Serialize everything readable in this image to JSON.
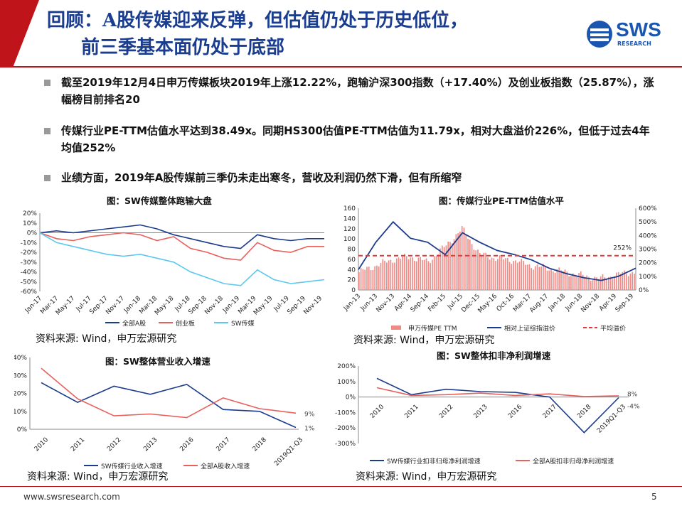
{
  "title": {
    "line1": "回顾：A股传媒迎来反弹，但估值仍处于历史低位，",
    "line2": "前三季基本面仍处于底部"
  },
  "logo": {
    "name": "SWS",
    "sub": "RESEARCH",
    "color": "#1a56b0"
  },
  "bullets": [
    "截至2019年12月4日申万传媒板块2019年上涨12.22%，跑输沪深300指数（+17.40%）及创业板指数（25.87%），涨幅榜目前排名20",
    "传媒行业PE-TTM估值水平达到38.49x。同期HS300估值PE-TTM估值为11.79x，相对大盘溢价226%，但低于过去4年均值252%",
    "业绩方面，2019年A股传媒前三季仍未走出寒冬，营收及利润仍然下滑，但有所缩窄"
  ],
  "colors": {
    "navy": "#1b3b8c",
    "red": "#e8605c",
    "cyan": "#5bc8ef",
    "bar": "#f08a86",
    "dashed": "#e23a3a"
  },
  "chart_data": [
    {
      "type": "line",
      "title": "图：SW传媒整体跑输大盘",
      "x": [
        "Jan-17",
        "Mar-17",
        "May-17",
        "Jul-17",
        "Sep-17",
        "Nov-17",
        "Jan-18",
        "Mar-18",
        "May-18",
        "Jul-18",
        "Sep-18",
        "Nov-18",
        "Jan-19",
        "Mar-19",
        "May-19",
        "Jul-19",
        "Sep-19",
        "Nov-19"
      ],
      "ylim": [
        -60,
        20
      ],
      "yticks": [
        "20%",
        "10%",
        "0%",
        "-10%",
        "-20%",
        "-30%",
        "-40%",
        "-50%",
        "-60%"
      ],
      "series": [
        {
          "name": "全部A股",
          "values": [
            0,
            2,
            0,
            2,
            4,
            6,
            8,
            4,
            -2,
            -6,
            -10,
            -14,
            -16,
            -2,
            -6,
            -8,
            -6,
            -6
          ]
        },
        {
          "name": "创业板",
          "values": [
            0,
            -6,
            -8,
            -4,
            -2,
            0,
            -2,
            -8,
            -4,
            -16,
            -20,
            -26,
            -28,
            -10,
            -18,
            -20,
            -14,
            -14
          ]
        },
        {
          "name": "SW传媒",
          "values": [
            0,
            -10,
            -14,
            -18,
            -22,
            -24,
            -22,
            -26,
            -30,
            -40,
            -46,
            -52,
            -54,
            -38,
            -48,
            -52,
            -50,
            -48
          ]
        }
      ],
      "source": "资料来源: Wind，申万宏源研究"
    },
    {
      "type": "bar",
      "title": "图：传媒行业PE-TTM估值水平",
      "x": [
        "Jan-13",
        "Jun-13",
        "Nov-13",
        "Apr-14",
        "Sep-14",
        "Feb-15",
        "Jul-15",
        "Dec-15",
        "May-16",
        "Oct-16",
        "Mar-17",
        "Aug-17",
        "Jan-18",
        "Jun-18",
        "Nov-18",
        "Apr-19",
        "Sep-19"
      ],
      "ylim_left": [
        0,
        160
      ],
      "yticks_left": [
        "160",
        "140",
        "120",
        "100",
        "80",
        "60",
        "40",
        "20",
        "0"
      ],
      "ylim_right": [
        0,
        600
      ],
      "yticks_right": [
        "600%",
        "500%",
        "400%",
        "300%",
        "200%",
        "100%",
        "0%"
      ],
      "series": [
        {
          "name": "申万传媒PE TTM",
          "values": [
            35,
            48,
            60,
            65,
            55,
            85,
            120,
            70,
            62,
            58,
            48,
            42,
            35,
            28,
            22,
            30,
            36
          ]
        },
        {
          "name": "相对上证综指溢价",
          "values": [
            150,
            350,
            500,
            380,
            350,
            260,
            420,
            350,
            290,
            260,
            220,
            160,
            120,
            90,
            70,
            100,
            160
          ]
        },
        {
          "name": "平均溢价",
          "values": [
            252,
            252,
            252,
            252,
            252,
            252,
            252,
            252,
            252,
            252,
            252,
            252,
            252,
            252,
            252,
            252,
            252
          ]
        }
      ],
      "annotation": "252%",
      "source": "资料来源: Wind，申万宏源研究"
    },
    {
      "type": "line",
      "title": "图：SW整体营业收入增速",
      "x": [
        "2010",
        "2011",
        "2012",
        "2013",
        "2016",
        "2017",
        "2018",
        "2019Q1-Q3"
      ],
      "ylim": [
        0,
        40
      ],
      "yticks": [
        "40%",
        "30%",
        "20%",
        "10%",
        "0%"
      ],
      "series": [
        {
          "name": "SW传媒行业收入增速",
          "values": [
            26,
            15,
            24,
            19.5,
            25,
            11,
            10,
            1
          ]
        },
        {
          "name": "全部A股收入增速",
          "values": [
            34,
            17,
            7.5,
            8.5,
            6.5,
            17.5,
            11.5,
            9
          ]
        }
      ],
      "labels": [
        "9%",
        "1%"
      ],
      "source": "资料来源: Wind，申万宏源研究"
    },
    {
      "type": "line",
      "title": "图：SW整体扣非净利润增速",
      "x": [
        "2010",
        "2011",
        "2012",
        "2013",
        "2016",
        "2017",
        "2018",
        "2019Q1-Q3"
      ],
      "ylim": [
        -300,
        200
      ],
      "yticks": [
        "200%",
        "100%",
        "0%",
        "-100%",
        "-200%",
        "-300%"
      ],
      "series": [
        {
          "name": "SW传媒行业扣非归母净利润增速",
          "values": [
            120,
            15,
            50,
            35,
            30,
            0,
            -230,
            -4
          ]
        },
        {
          "name": "全部A股扣非归母净利润增速",
          "values": [
            60,
            10,
            15,
            25,
            10,
            20,
            3,
            8
          ]
        }
      ],
      "labels": [
        "8%",
        "-4%"
      ],
      "source": "资料来源: Wind，申万宏源研究"
    }
  ],
  "footer": {
    "url": "www.swsresearch.com",
    "page": "5"
  }
}
